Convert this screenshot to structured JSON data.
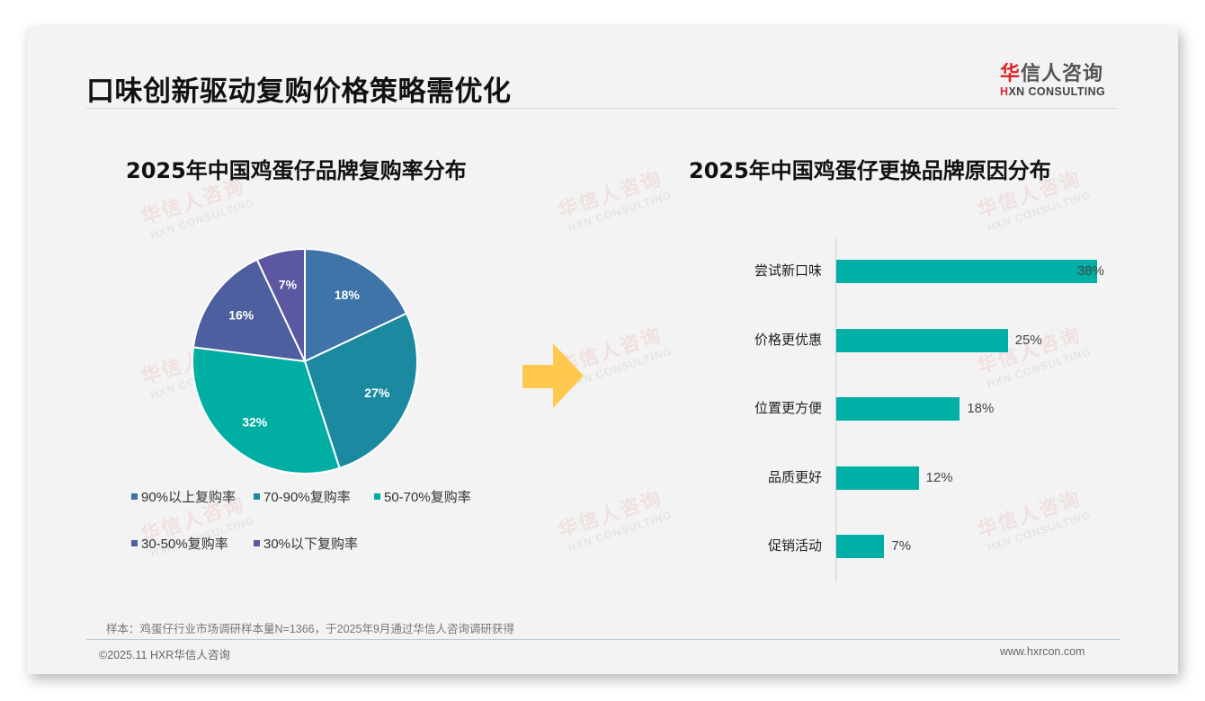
{
  "header": {
    "title": "口味创新驱动复购价格策略需优化",
    "logo": {
      "cn_accent": "华",
      "cn_rest": "信人咨询",
      "en_accent": "H",
      "en_rest": "XN CONSULTING"
    }
  },
  "watermark": {
    "cn": "华信人咨询",
    "en": "HXN CONSULTING"
  },
  "pie_chart": {
    "title": "2025年中国鸡蛋仔品牌复购率分布"
  },
  "bar_chart": {
    "title": "2025年中国鸡蛋仔更换品牌原因分布"
  },
  "colors": {
    "pie": [
      "#3f74a8",
      "#1b8aa0",
      "#00aea4",
      "#4d5f9f",
      "#5b57a0"
    ],
    "bar": "#00b0a6",
    "arrow": "#ffc94f",
    "brand_red": "#d9262c"
  },
  "chart_data": [
    {
      "type": "pie",
      "title": "2025年中国鸡蛋仔品牌复购率分布",
      "categories": [
        "90%以上复购率",
        "70-90%复购率",
        "50-70%复购率",
        "30-50%复购率",
        "30%以下复购率"
      ],
      "values": [
        18,
        27,
        32,
        16,
        7
      ],
      "labels": [
        "18%",
        "27%",
        "32%",
        "16%",
        "7%"
      ],
      "unit": "%",
      "start_angle": "12 o'clock, clockwise",
      "legend_position": "bottom"
    },
    {
      "type": "bar",
      "orientation": "horizontal",
      "title": "2025年中国鸡蛋仔更换品牌原因分布",
      "categories": [
        "尝试新口味",
        "价格更优惠",
        "位置更方便",
        "品质更好",
        "促销活动"
      ],
      "values": [
        38,
        25,
        18,
        12,
        7
      ],
      "labels": [
        "38%",
        "25%",
        "18%",
        "12%",
        "7%"
      ],
      "unit": "%",
      "xlabel": "",
      "ylabel": "",
      "grid": false,
      "legend": false
    }
  ],
  "footer": {
    "sample_note": "样本：鸡蛋仔行业市场调研样本量N=1366，于2025年9月通过华信人咨询调研获得",
    "copyright": "©2025.11 HXR华信人咨询",
    "website": "www.hxrcon.com"
  }
}
